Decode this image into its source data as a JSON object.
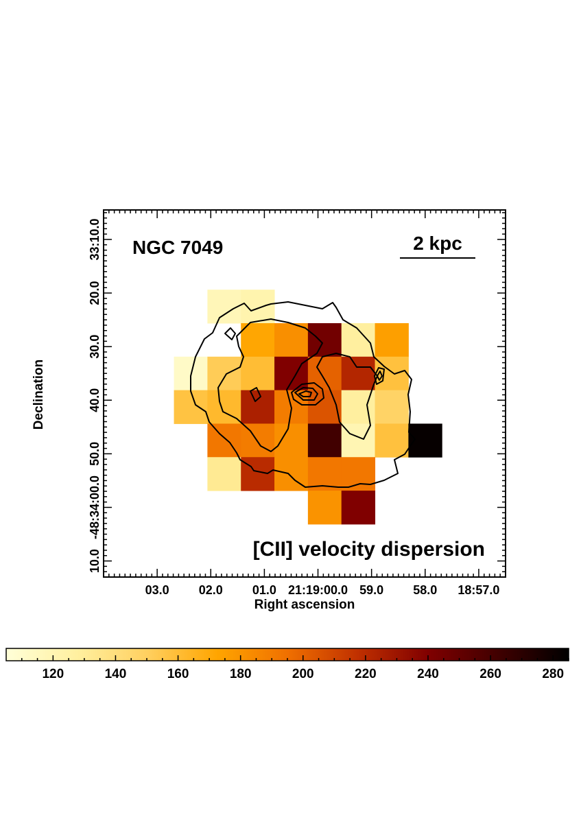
{
  "chart_data": {
    "type": "heatmap",
    "object_label": "NGC 7049",
    "scale_bar_label": "2 kpc",
    "map_label": "[CII] velocity dispersion",
    "xlabel": "Right ascension",
    "ylabel": "Declination",
    "x_ticks": [
      "03.0",
      "02.0",
      "01.0",
      "21:19:00.0",
      "59.0",
      "58.0",
      "18:57.0"
    ],
    "y_ticks": [
      "10.0",
      "-48:34:00.0",
      "50.0",
      "40.0",
      "30.0",
      "20.0",
      "33:10.0"
    ],
    "colorbar": {
      "range": [
        105,
        285
      ],
      "ticks": [
        "120",
        "140",
        "160",
        "180",
        "200",
        "220",
        "240",
        "260",
        "280"
      ],
      "colormap": [
        "#ffffd8",
        "#fff0a0",
        "#ffd060",
        "#ffa500",
        "#f07000",
        "#c03000",
        "#800000",
        "#400000",
        "#000000"
      ]
    },
    "cells_ra_dec_value": [
      [
        1.75,
        22.5,
        118
      ],
      [
        1.125,
        22.5,
        122
      ],
      [
        1.125,
        28.75,
        172
      ],
      [
        0.5,
        28.75,
        182
      ],
      [
        -0.125,
        28.75,
        245
      ],
      [
        -0.75,
        28.75,
        128
      ],
      [
        -1.375,
        28.75,
        175
      ],
      [
        2.375,
        35.0,
        112
      ],
      [
        1.75,
        35.0,
        152
      ],
      [
        1.125,
        35.0,
        160
      ],
      [
        0.5,
        35.0,
        240
      ],
      [
        -0.125,
        35.0,
        200
      ],
      [
        -0.75,
        35.0,
        222
      ],
      [
        -1.375,
        35.0,
        158
      ],
      [
        2.375,
        41.25,
        157
      ],
      [
        1.75,
        41.25,
        162
      ],
      [
        1.125,
        41.25,
        225
      ],
      [
        0.5,
        41.25,
        190
      ],
      [
        -0.125,
        41.25,
        205
      ],
      [
        -0.75,
        41.25,
        128
      ],
      [
        -1.375,
        41.25,
        148
      ],
      [
        1.75,
        47.5,
        192
      ],
      [
        1.125,
        47.5,
        190
      ],
      [
        0.5,
        47.5,
        182
      ],
      [
        -0.125,
        47.5,
        262
      ],
      [
        -0.75,
        47.5,
        120
      ],
      [
        -1.375,
        47.5,
        158
      ],
      [
        -2.0,
        47.5,
        283
      ],
      [
        1.75,
        53.75,
        132
      ],
      [
        1.125,
        53.75,
        220
      ],
      [
        0.5,
        53.75,
        182
      ],
      [
        -0.125,
        53.75,
        192
      ],
      [
        -0.75,
        53.75,
        192
      ],
      [
        -0.125,
        60.0,
        180
      ],
      [
        -0.75,
        60.0,
        240
      ]
    ]
  }
}
